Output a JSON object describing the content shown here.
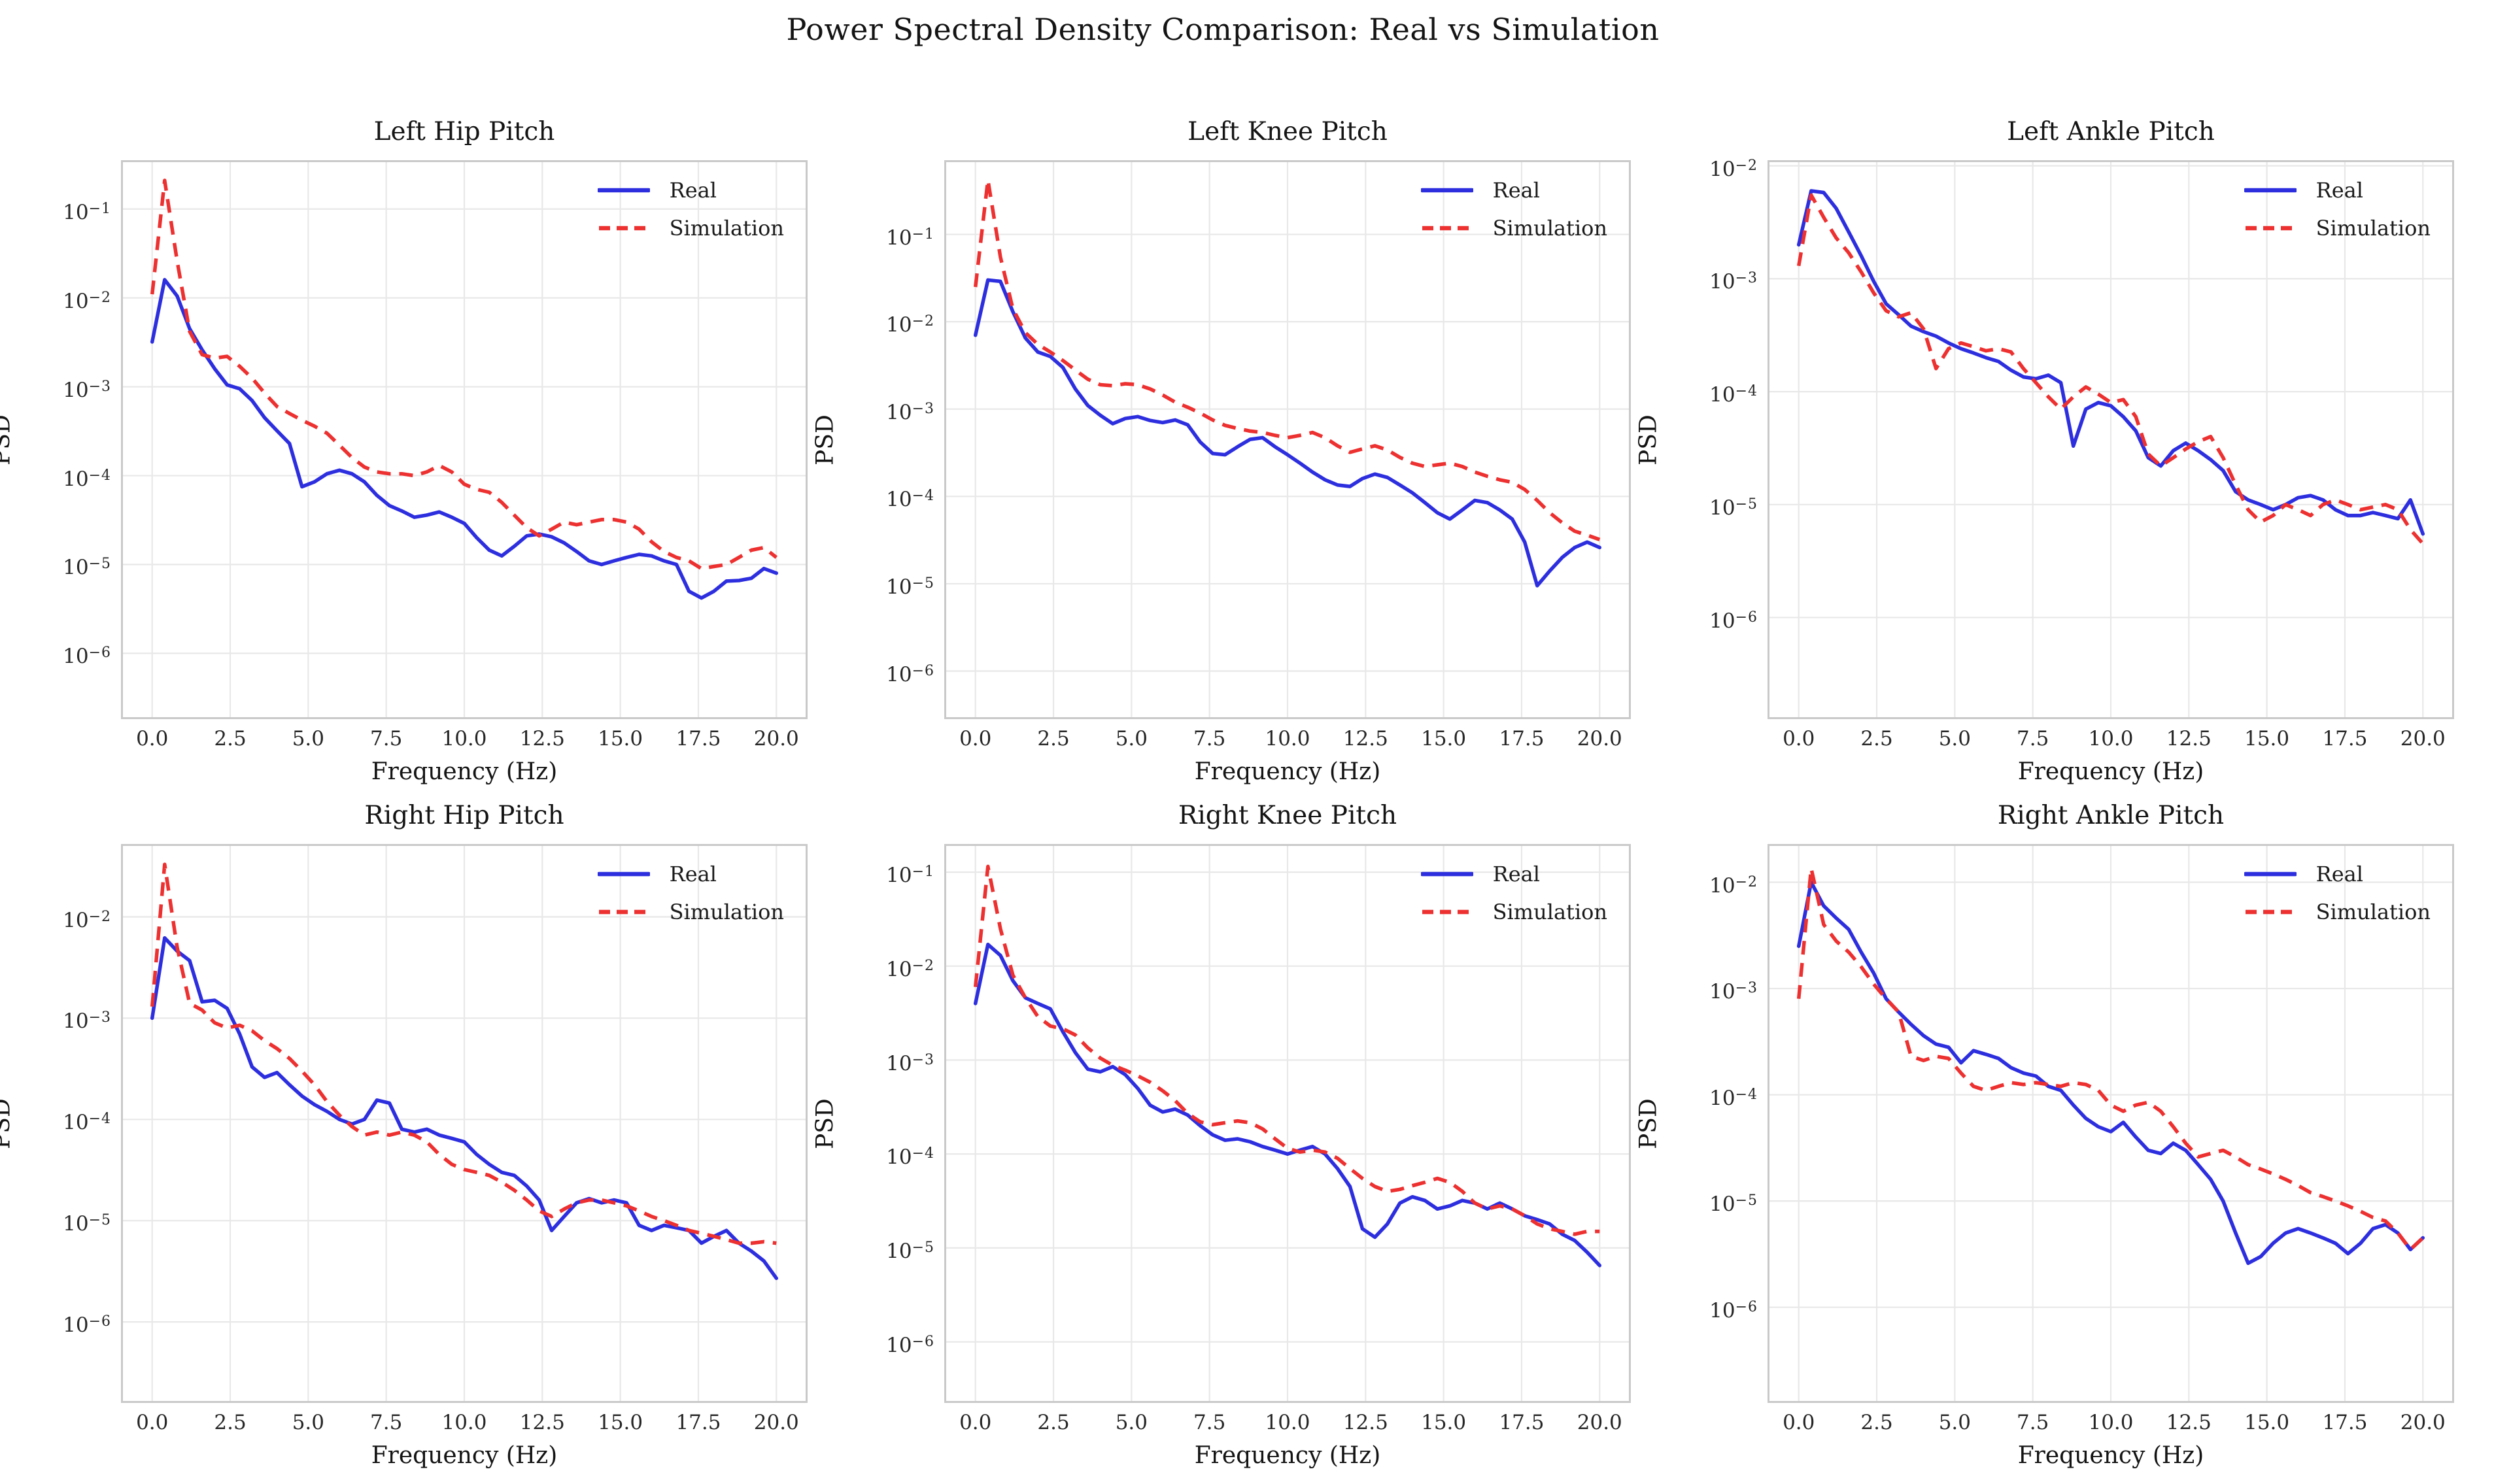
{
  "suptitle": "Power Spectral Density Comparison: Real vs Simulation",
  "colors": {
    "real": "#2d2fdf",
    "simulation": "#ed3030",
    "grid": "#e8e8e8",
    "spine": "#c9c9c9",
    "tick_text": "#262626",
    "title_text": "#141414"
  },
  "legend_labels": [
    "Real",
    "Simulation"
  ],
  "chart_data": [
    {
      "title": "Left Hip Pitch",
      "type": "line",
      "xlabel": "Frequency (Hz)",
      "ylabel": "PSD",
      "legend": [
        "Real",
        "Simulation"
      ],
      "legend_position": "upper right",
      "grid": true,
      "x_start": 0,
      "x_step": 0.4,
      "xlim": [
        -1,
        21
      ],
      "x_ticks": [
        0,
        2.5,
        5,
        7.5,
        10,
        12.5,
        15,
        17.5,
        20
      ],
      "x_tick_labels": [
        "0.0",
        "2.5",
        "5.0",
        "7.5",
        "10.0",
        "12.5",
        "15.0",
        "17.5",
        "20.0"
      ],
      "y_tick_exponents": [
        -1,
        -2,
        -3,
        -4,
        -5,
        -6
      ],
      "ylim_log10": [
        -6.74,
        -0.45
      ],
      "series": [
        {
          "name": "Real",
          "style": "solid",
          "color": "#2d2fdf",
          "values": [
            0.0032,
            0.016,
            0.0105,
            0.0045,
            0.0026,
            0.0016,
            0.00105,
            0.00095,
            0.0007,
            0.00045,
            0.00032,
            0.00023,
            7.5e-05,
            8.5e-05,
            0.000105,
            0.000115,
            0.000105,
            8.5e-05,
            6e-05,
            4.6e-05,
            4e-05,
            3.4e-05,
            3.6e-05,
            3.9e-05,
            3.4e-05,
            2.9e-05,
            2e-05,
            1.45e-05,
            1.25e-05,
            1.6e-05,
            2.1e-05,
            2.2e-05,
            2.05e-05,
            1.75e-05,
            1.4e-05,
            1.1e-05,
            1e-05,
            1.1e-05,
            1.2e-05,
            1.3e-05,
            1.25e-05,
            1.1e-05,
            1e-05,
            5e-06,
            4.2e-06,
            5e-06,
            6.5e-06,
            6.6e-06,
            7e-06,
            9e-06,
            8e-06
          ]
        },
        {
          "name": "Simulation",
          "style": "dashed",
          "color": "#ed3030",
          "values": [
            0.011,
            0.21,
            0.026,
            0.0042,
            0.0023,
            0.0021,
            0.0022,
            0.0017,
            0.00125,
            0.00085,
            0.0006,
            0.0005,
            0.00042,
            0.00036,
            0.0003,
            0.00022,
            0.00016,
            0.000125,
            0.00011,
            0.000105,
            0.000105,
            0.0001,
            0.00011,
            0.00013,
            0.00011,
            8e-05,
            7e-05,
            6.5e-05,
            5e-05,
            3.6e-05,
            2.6e-05,
            2.1e-05,
            2.5e-05,
            3e-05,
            2.8e-05,
            3e-05,
            3.2e-05,
            3.2e-05,
            3e-05,
            2.5e-05,
            1.8e-05,
            1.4e-05,
            1.2e-05,
            1.1e-05,
            9e-06,
            9.5e-06,
            1e-05,
            1.2e-05,
            1.45e-05,
            1.55e-05,
            1.2e-05
          ]
        }
      ]
    },
    {
      "title": "Left Knee Pitch",
      "type": "line",
      "xlabel": "Frequency (Hz)",
      "ylabel": "PSD",
      "legend": [
        "Real",
        "Simulation"
      ],
      "legend_position": "upper right",
      "grid": true,
      "x_start": 0,
      "x_step": 0.4,
      "xlim": [
        -1,
        21
      ],
      "x_ticks": [
        0,
        2.5,
        5,
        7.5,
        10,
        12.5,
        15,
        17.5,
        20
      ],
      "x_tick_labels": [
        "0.0",
        "2.5",
        "5.0",
        "7.5",
        "10.0",
        "12.5",
        "15.0",
        "17.5",
        "20.0"
      ],
      "y_tick_exponents": [
        -1,
        -2,
        -3,
        -4,
        -5,
        -6
      ],
      "ylim_log10": [
        -6.55,
        -0.15
      ],
      "series": [
        {
          "name": "Real",
          "style": "solid",
          "color": "#2d2fdf",
          "values": [
            0.007,
            0.03,
            0.029,
            0.013,
            0.0065,
            0.0045,
            0.004,
            0.003,
            0.0017,
            0.0011,
            0.00085,
            0.00068,
            0.00078,
            0.00082,
            0.00074,
            0.0007,
            0.00075,
            0.00066,
            0.00042,
            0.00031,
            0.0003,
            0.00037,
            0.00045,
            0.00047,
            0.00037,
            0.0003,
            0.00024,
            0.00019,
            0.000155,
            0.000135,
            0.00013,
            0.00016,
            0.00018,
            0.000165,
            0.000135,
            0.00011,
            8.5e-05,
            6.5e-05,
            5.5e-05,
            7e-05,
            9e-05,
            8.5e-05,
            7e-05,
            5.5e-05,
            3e-05,
            9.5e-06,
            1.4e-05,
            2e-05,
            2.6e-05,
            3e-05,
            2.6e-05
          ]
        },
        {
          "name": "Simulation",
          "style": "dashed",
          "color": "#ed3030",
          "values": [
            0.025,
            0.42,
            0.055,
            0.014,
            0.0075,
            0.0055,
            0.0045,
            0.0036,
            0.0028,
            0.0022,
            0.0019,
            0.00185,
            0.00195,
            0.0019,
            0.0017,
            0.00145,
            0.0012,
            0.00105,
            0.0009,
            0.00075,
            0.00065,
            0.0006,
            0.00056,
            0.00054,
            0.0005,
            0.00047,
            0.0005,
            0.00054,
            0.00047,
            0.00038,
            0.00032,
            0.00035,
            0.00038,
            0.00034,
            0.00028,
            0.00024,
            0.00022,
            0.00023,
            0.00024,
            0.00022,
            0.00019,
            0.00017,
            0.000155,
            0.000145,
            0.00012,
            9e-05,
            6.5e-05,
            5e-05,
            4e-05,
            3.6e-05,
            3.2e-05
          ]
        }
      ]
    },
    {
      "title": "Left Ankle Pitch",
      "type": "line",
      "xlabel": "Frequency (Hz)",
      "ylabel": "PSD",
      "legend": [
        "Real",
        "Simulation"
      ],
      "legend_position": "upper right",
      "grid": true,
      "x_start": 0,
      "x_step": 0.4,
      "xlim": [
        -1,
        21
      ],
      "x_ticks": [
        0,
        2.5,
        5,
        7.5,
        10,
        12.5,
        15,
        17.5,
        20
      ],
      "x_tick_labels": [
        "0.0",
        "2.5",
        "5.0",
        "7.5",
        "10.0",
        "12.5",
        "15.0",
        "17.5",
        "20.0"
      ],
      "y_tick_exponents": [
        -2,
        -3,
        -4,
        -5,
        -6
      ],
      "ylim_log10": [
        -6.9,
        -1.95
      ],
      "series": [
        {
          "name": "Real",
          "style": "solid",
          "color": "#2d2fdf",
          "values": [
            0.002,
            0.006,
            0.0058,
            0.0042,
            0.0026,
            0.0016,
            0.00095,
            0.0006,
            0.00048,
            0.00038,
            0.00034,
            0.00031,
            0.00027,
            0.00024,
            0.00022,
            0.0002,
            0.000185,
            0.000155,
            0.000135,
            0.00013,
            0.00014,
            0.00012,
            3.3e-05,
            7e-05,
            8e-05,
            7.5e-05,
            6e-05,
            4.5e-05,
            2.6e-05,
            2.2e-05,
            3e-05,
            3.5e-05,
            3e-05,
            2.5e-05,
            2e-05,
            1.3e-05,
            1.1e-05,
            1e-05,
            9e-06,
            1e-05,
            1.15e-05,
            1.2e-05,
            1.1e-05,
            9e-06,
            8e-06,
            8e-06,
            8.5e-06,
            8e-06,
            7.5e-06,
            1.1e-05,
            5.5e-06
          ]
        },
        {
          "name": "Simulation",
          "style": "dashed",
          "color": "#ed3030",
          "values": [
            0.0013,
            0.0055,
            0.0035,
            0.0023,
            0.0017,
            0.00115,
            0.00075,
            0.00052,
            0.00046,
            0.0005,
            0.00036,
            0.00016,
            0.00024,
            0.00027,
            0.00025,
            0.00023,
            0.00024,
            0.000225,
            0.00016,
            0.00012,
            9e-05,
            7e-05,
            9e-05,
            0.00011,
            9.5e-05,
            8e-05,
            8.5e-05,
            6e-05,
            2.8e-05,
            2.2e-05,
            2.6e-05,
            3.1e-05,
            3.6e-05,
            4e-05,
            2.6e-05,
            1.5e-05,
            9e-06,
            7e-06,
            8e-06,
            1e-05,
            9e-06,
            8e-06,
            1e-05,
            1.1e-05,
            1e-05,
            9e-06,
            9.5e-06,
            1e-05,
            9e-06,
            6e-06,
            4.5e-06
          ]
        }
      ]
    },
    {
      "title": "Right Hip Pitch",
      "type": "line",
      "xlabel": "Frequency (Hz)",
      "ylabel": "PSD",
      "legend": [
        "Real",
        "Simulation"
      ],
      "legend_position": "upper right",
      "grid": true,
      "x_start": 0,
      "x_step": 0.4,
      "xlim": [
        -1,
        21
      ],
      "x_ticks": [
        0,
        2.5,
        5,
        7.5,
        10,
        12.5,
        15,
        17.5,
        20
      ],
      "x_tick_labels": [
        "0.0",
        "2.5",
        "5.0",
        "7.5",
        "10.0",
        "12.5",
        "15.0",
        "17.5",
        "20.0"
      ],
      "y_tick_exponents": [
        -2,
        -3,
        -4,
        -5,
        -6
      ],
      "ylim_log10": [
        -6.8,
        -1.28
      ],
      "series": [
        {
          "name": "Real",
          "style": "solid",
          "color": "#2d2fdf",
          "values": [
            0.001,
            0.0062,
            0.0046,
            0.0037,
            0.00145,
            0.0015,
            0.00125,
            0.0007,
            0.00033,
            0.00026,
            0.00029,
            0.00022,
            0.00017,
            0.00014,
            0.00012,
            0.0001,
            9e-05,
            0.0001,
            0.000155,
            0.000145,
            8e-05,
            7.5e-05,
            8e-05,
            7e-05,
            6.5e-05,
            6e-05,
            4.5e-05,
            3.6e-05,
            3e-05,
            2.8e-05,
            2.2e-05,
            1.6e-05,
            8e-06,
            1.1e-05,
            1.5e-05,
            1.65e-05,
            1.5e-05,
            1.6e-05,
            1.5e-05,
            9e-06,
            8e-06,
            9e-06,
            8.5e-06,
            8e-06,
            6e-06,
            7e-06,
            8e-06,
            6e-06,
            5e-06,
            4e-06,
            2.7e-06
          ]
        },
        {
          "name": "Simulation",
          "style": "dashed",
          "color": "#ed3030",
          "values": [
            0.0013,
            0.033,
            0.005,
            0.0014,
            0.0012,
            0.0009,
            0.0008,
            0.00085,
            0.00075,
            0.0006,
            0.0005,
            0.0004,
            0.0003,
            0.00022,
            0.00015,
            0.00011,
            8.5e-05,
            7e-05,
            7.5e-05,
            7e-05,
            7.5e-05,
            7e-05,
            6e-05,
            4.5e-05,
            3.6e-05,
            3.2e-05,
            3e-05,
            2.8e-05,
            2.4e-05,
            2e-05,
            1.6e-05,
            1.25e-05,
            1.1e-05,
            1.3e-05,
            1.5e-05,
            1.6e-05,
            1.6e-05,
            1.5e-05,
            1.4e-05,
            1.25e-05,
            1.1e-05,
            1e-05,
            9e-06,
            8e-06,
            7.5e-06,
            7e-06,
            6.5e-06,
            6e-06,
            6e-06,
            6.2e-06,
            6e-06
          ]
        }
      ]
    },
    {
      "title": "Right Knee Pitch",
      "type": "line",
      "xlabel": "Frequency (Hz)",
      "ylabel": "PSD",
      "legend": [
        "Real",
        "Simulation"
      ],
      "legend_position": "upper right",
      "grid": true,
      "x_start": 0,
      "x_step": 0.4,
      "xlim": [
        -1,
        21
      ],
      "x_ticks": [
        0,
        2.5,
        5,
        7.5,
        10,
        12.5,
        15,
        17.5,
        20
      ],
      "x_tick_labels": [
        "0.0",
        "2.5",
        "5.0",
        "7.5",
        "10.0",
        "12.5",
        "15.0",
        "17.5",
        "20.0"
      ],
      "y_tick_exponents": [
        -1,
        -2,
        -3,
        -4,
        -5,
        -6
      ],
      "ylim_log10": [
        -6.65,
        -0.7
      ],
      "series": [
        {
          "name": "Real",
          "style": "solid",
          "color": "#2d2fdf",
          "values": [
            0.004,
            0.017,
            0.013,
            0.007,
            0.0046,
            0.004,
            0.0035,
            0.002,
            0.0012,
            0.0008,
            0.00075,
            0.00085,
            0.0007,
            0.0005,
            0.00033,
            0.00028,
            0.0003,
            0.00026,
            0.0002,
            0.00016,
            0.00014,
            0.000145,
            0.000135,
            0.00012,
            0.00011,
            0.0001,
            0.00011,
            0.00012,
            0.0001,
            7e-05,
            4.5e-05,
            1.6e-05,
            1.3e-05,
            1.8e-05,
            3e-05,
            3.5e-05,
            3.2e-05,
            2.6e-05,
            2.8e-05,
            3.2e-05,
            3e-05,
            2.6e-05,
            3e-05,
            2.6e-05,
            2.2e-05,
            2e-05,
            1.8e-05,
            1.4e-05,
            1.2e-05,
            9e-06,
            6.5e-06
          ]
        },
        {
          "name": "Simulation",
          "style": "dashed",
          "color": "#ed3030",
          "values": [
            0.006,
            0.115,
            0.025,
            0.008,
            0.0046,
            0.0029,
            0.0023,
            0.00215,
            0.00185,
            0.00135,
            0.00105,
            0.00088,
            0.00078,
            0.00068,
            0.00058,
            0.00047,
            0.00037,
            0.00027,
            0.00022,
            0.000205,
            0.000215,
            0.000225,
            0.000215,
            0.000185,
            0.000145,
            0.000115,
            0.000105,
            0.00011,
            0.000105,
            9e-05,
            7e-05,
            5.5e-05,
            4.5e-05,
            4e-05,
            4.2e-05,
            4.6e-05,
            5e-05,
            5.5e-05,
            5e-05,
            4e-05,
            3e-05,
            2.6e-05,
            2.8e-05,
            2.6e-05,
            2.2e-05,
            1.8e-05,
            1.6e-05,
            1.5e-05,
            1.4e-05,
            1.5e-05,
            1.5e-05
          ]
        }
      ]
    },
    {
      "title": "Right Ankle Pitch",
      "type": "line",
      "xlabel": "Frequency (Hz)",
      "ylabel": "PSD",
      "legend": [
        "Real",
        "Simulation"
      ],
      "legend_position": "upper right",
      "grid": true,
      "x_start": 0,
      "x_step": 0.4,
      "xlim": [
        -1,
        21
      ],
      "x_ticks": [
        0,
        2.5,
        5,
        7.5,
        10,
        12.5,
        15,
        17.5,
        20
      ],
      "x_tick_labels": [
        "0.0",
        "2.5",
        "5.0",
        "7.5",
        "10.0",
        "12.5",
        "15.0",
        "17.5",
        "20.0"
      ],
      "y_tick_exponents": [
        -2,
        -3,
        -4,
        -5,
        -6
      ],
      "ylim_log10": [
        -6.9,
        -1.64
      ],
      "series": [
        {
          "name": "Real",
          "style": "solid",
          "color": "#2d2fdf",
          "values": [
            0.0025,
            0.01,
            0.006,
            0.0046,
            0.0036,
            0.0022,
            0.0014,
            0.0008,
            0.0006,
            0.00046,
            0.00036,
            0.0003,
            0.00028,
            0.0002,
            0.00026,
            0.00024,
            0.00022,
            0.00018,
            0.00016,
            0.00015,
            0.00012,
            0.00011,
            8e-05,
            6e-05,
            5e-05,
            4.5e-05,
            5.5e-05,
            4e-05,
            3e-05,
            2.8e-05,
            3.5e-05,
            3e-05,
            2.2e-05,
            1.6e-05,
            1e-05,
            5e-06,
            2.6e-06,
            3e-06,
            4e-06,
            5e-06,
            5.5e-06,
            5e-06,
            4.5e-06,
            4e-06,
            3.2e-06,
            4e-06,
            5.5e-06,
            6e-06,
            5e-06,
            3.5e-06,
            4.5e-06
          ]
        },
        {
          "name": "Simulation",
          "style": "dashed",
          "color": "#ed3030",
          "values": [
            0.0008,
            0.0135,
            0.004,
            0.0028,
            0.0022,
            0.0016,
            0.0011,
            0.0008,
            0.0006,
            0.00023,
            0.00021,
            0.00023,
            0.00022,
            0.00016,
            0.00012,
            0.00011,
            0.00012,
            0.00013,
            0.000125,
            0.00013,
            0.000125,
            0.00012,
            0.00013,
            0.000125,
            0.00011,
            8e-05,
            7e-05,
            8e-05,
            8.5e-05,
            7e-05,
            5e-05,
            3.5e-05,
            2.6e-05,
            2.8e-05,
            3e-05,
            2.6e-05,
            2.2e-05,
            2e-05,
            1.8e-05,
            1.6e-05,
            1.4e-05,
            1.2e-05,
            1.1e-05,
            1e-05,
            9e-06,
            8e-06,
            7e-06,
            6.5e-06,
            5e-06,
            3.5e-06,
            4.5e-06
          ]
        }
      ]
    }
  ]
}
